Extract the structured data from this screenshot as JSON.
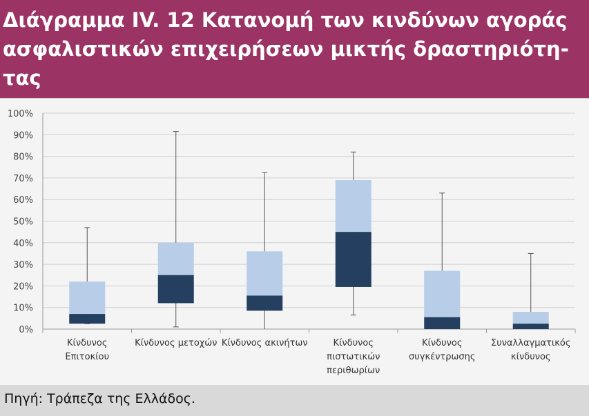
{
  "title": "Διάγραμμα IV. 12 Κατανομή των κινδύνων αγοράς ασφαλιστικών επιχειρήσεων μικτής δραστηριότη-τας",
  "source": "Πηγή: Τράπεζα της Ελλάδος.",
  "colors": {
    "header_bg": "#9b3365",
    "upper_box": "#b8cde8",
    "lower_box": "#243f60",
    "whisker": "#555555",
    "footer_bg": "#d9d9d9"
  },
  "chart_data": {
    "type": "box",
    "ylim": [
      0,
      100
    ],
    "yticks": [
      "0%",
      "10%",
      "20%",
      "30%",
      "40%",
      "50%",
      "60%",
      "70%",
      "80%",
      "90%",
      "100%"
    ],
    "grid": true,
    "legend": "none",
    "categories": [
      [
        "Κίνδυνος",
        "Επιτοκίου"
      ],
      [
        "Κίνδυνος μετοχών"
      ],
      [
        "Κίνδυνος ακινήτων"
      ],
      [
        "Κίνδυνος",
        "πιστωτικών",
        "περιθωρίων"
      ],
      [
        "Κίνδυνος",
        "συγκέντρωσης"
      ],
      [
        "Συναλλαγματικός",
        "κίνδυνος"
      ]
    ],
    "boxes": [
      {
        "min": 2.5,
        "q1": 2.5,
        "median": 7,
        "q3": 22,
        "max": 47
      },
      {
        "min": 1,
        "q1": 12,
        "median": 25,
        "q3": 40,
        "max": 91.5
      },
      {
        "min": 0,
        "q1": 8.5,
        "median": 15.5,
        "q3": 36,
        "max": 72.5
      },
      {
        "min": 6.5,
        "q1": 19.5,
        "median": 45,
        "q3": 69,
        "max": 82
      },
      {
        "min": 0,
        "q1": 0,
        "median": 5.5,
        "q3": 27,
        "max": 63
      },
      {
        "min": 0,
        "q1": 0,
        "median": 2.5,
        "q3": 8,
        "max": 35
      }
    ]
  }
}
